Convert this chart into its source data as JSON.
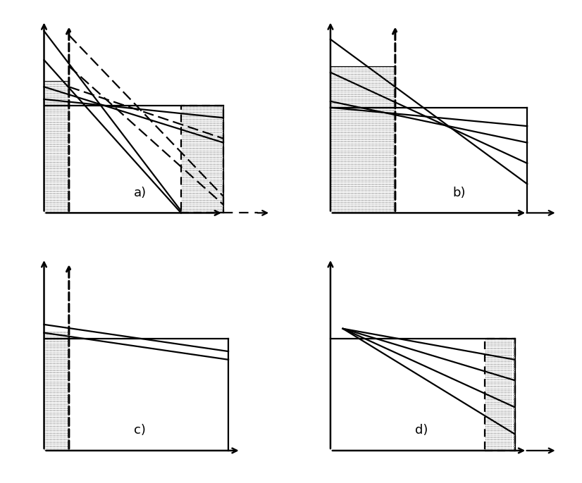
{
  "background": "#ffffff",
  "panels": [
    "a)",
    "b)",
    "c)",
    "d)"
  ],
  "label_fontsize": 13
}
